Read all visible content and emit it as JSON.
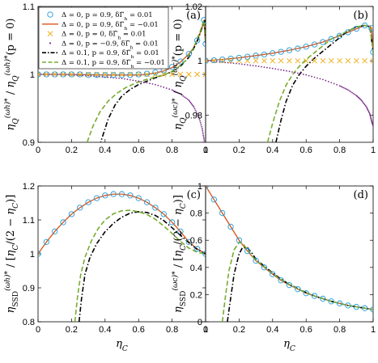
{
  "figure": {
    "legend": [
      {
        "label": "Δ = 0, p = 0.9, δΓ̃_h = 0.01",
        "marker": "circle",
        "color": "#1f9bd7"
      },
      {
        "label": "Δ = 0, p = 0.9, δΓ̃_h = −0.01",
        "marker": "solid",
        "color": "#d95319"
      },
      {
        "label": "Δ = 0, p = 0, δΓ̃_h = 0.01",
        "marker": "x",
        "color": "#edb120"
      },
      {
        "label": "Δ = 0, p = −0.9, δΓ̃_h = 0.01",
        "marker": "dot",
        "color": "#7e2f8e"
      },
      {
        "label": "Δ = 0.1, p = 0.9, δΓ̃_h = 0.01",
        "marker": "dashdot",
        "color": "#000000"
      },
      {
        "label": "Δ = 0.1, p = 0.9, δΓ̃_h = −0.01",
        "marker": "dashed",
        "color": "#77ac30"
      }
    ]
  },
  "chart_data": [
    {
      "panel": "(a)",
      "type": "line",
      "xlabel": "",
      "ylabel": "η_Q^{(ω_h)*}/η_Q^{(ω_h)*}(p=0)",
      "xlim": [
        0,
        1
      ],
      "ylim": [
        0.9,
        1.1
      ],
      "xticks": [
        "0",
        "0.2",
        "0.4",
        "0.6",
        "0.8",
        "1"
      ],
      "yticks": [
        "0.9",
        "1",
        "1.1"
      ],
      "yticks_values": [
        0.9,
        1.0,
        1.1
      ],
      "series": [
        {
          "ref": 0,
          "style": "circle",
          "x": [
            0,
            0.05,
            0.1,
            0.15,
            0.2,
            0.25,
            0.3,
            0.35,
            0.4,
            0.45,
            0.5,
            0.55,
            0.6,
            0.65,
            0.7,
            0.75,
            0.8,
            0.85,
            0.9,
            0.95,
            0.99,
            1.0
          ],
          "y": [
            1.0,
            1.0,
            1.0,
            1.0,
            1.0,
            1.0,
            0.999,
            0.999,
            0.999,
            0.999,
            0.999,
            0.999,
            1.0,
            1.001,
            1.003,
            1.006,
            1.011,
            1.019,
            1.03,
            1.05,
            1.08,
            1.045
          ]
        },
        {
          "ref": 1,
          "style": "solid",
          "x": [
            0,
            0.2,
            0.4,
            0.5,
            0.6,
            0.65,
            0.7,
            0.75,
            0.8,
            0.85,
            0.9,
            0.93,
            0.96,
            0.98,
            0.99,
            1.0
          ],
          "y": [
            1.0,
            1.0,
            0.999,
            0.999,
            0.999,
            1.0,
            1.002,
            1.005,
            1.01,
            1.018,
            1.03,
            1.04,
            1.056,
            1.07,
            1.08,
            1.045
          ]
        },
        {
          "ref": 2,
          "style": "x",
          "x": [
            0,
            0.05,
            0.1,
            0.15,
            0.2,
            0.25,
            0.3,
            0.35,
            0.4,
            0.45,
            0.5,
            0.55,
            0.6,
            0.65,
            0.7,
            0.75,
            0.8,
            0.85,
            0.9,
            0.95,
            1.0
          ],
          "y": [
            1,
            1,
            1,
            1,
            1,
            1,
            1,
            1,
            1,
            1,
            1,
            1,
            1,
            1,
            1,
            1,
            1,
            1,
            1,
            1,
            1
          ]
        },
        {
          "ref": 3,
          "style": "dot",
          "x": [
            0,
            0.1,
            0.2,
            0.3,
            0.4,
            0.5,
            0.6,
            0.7,
            0.8,
            0.85,
            0.9,
            0.93,
            0.96,
            0.98,
            0.99,
            1.0
          ],
          "y": [
            1.0,
            1.0,
            0.999,
            0.998,
            0.996,
            0.994,
            0.99,
            0.985,
            0.977,
            0.971,
            0.962,
            0.952,
            0.937,
            0.92,
            0.905,
            0.89
          ]
        },
        {
          "ref": 4,
          "style": "dashdot",
          "x": [
            0.35,
            0.38,
            0.42,
            0.46,
            0.5,
            0.55,
            0.6,
            0.65,
            0.7,
            0.75,
            0.8,
            0.85,
            0.9,
            0.95,
            0.98,
            0.995,
            1.0
          ],
          "y": [
            0.88,
            0.905,
            0.935,
            0.955,
            0.968,
            0.978,
            0.985,
            0.99,
            0.995,
            0.999,
            1.004,
            1.012,
            1.025,
            1.048,
            1.07,
            1.08,
            1.045
          ]
        },
        {
          "ref": 5,
          "style": "dashed",
          "x": [
            0.28,
            0.3,
            0.33,
            0.37,
            0.42,
            0.47,
            0.52,
            0.58,
            0.64,
            0.7,
            0.76,
            0.82,
            0.88,
            0.93,
            0.97,
            0.99,
            1.0
          ],
          "y": [
            0.89,
            0.905,
            0.925,
            0.945,
            0.961,
            0.972,
            0.98,
            0.987,
            0.992,
            0.996,
            1.0,
            1.007,
            1.02,
            1.04,
            1.065,
            1.08,
            1.045
          ]
        }
      ]
    },
    {
      "panel": "(b)",
      "type": "line",
      "xlabel": "",
      "ylabel": "η_Q^{(ω_c)*}/η_Q^{(ω_c)*}(p=0)",
      "xlim": [
        0,
        1
      ],
      "ylim": [
        0.97,
        1.02
      ],
      "xticks": [
        "0",
        "0.2",
        "0.4",
        "0.6",
        "0.8",
        "1"
      ],
      "yticks": [
        "0.98",
        "1",
        "1.02"
      ],
      "yticks_values": [
        0.98,
        1.0,
        1.02
      ],
      "series": [
        {
          "ref": 0,
          "style": "circle",
          "x": [
            0,
            0.05,
            0.1,
            0.15,
            0.2,
            0.25,
            0.3,
            0.35,
            0.4,
            0.45,
            0.5,
            0.55,
            0.6,
            0.65,
            0.7,
            0.75,
            0.8,
            0.85,
            0.9,
            0.95,
            0.99,
            1.0
          ],
          "y": [
            1.0,
            1.0002,
            1.0005,
            1.0008,
            1.0011,
            1.0015,
            1.0019,
            1.0023,
            1.0028,
            1.0033,
            1.0039,
            1.0045,
            1.0052,
            1.006,
            1.0069,
            1.008,
            1.0092,
            1.0105,
            1.0118,
            1.013,
            1.012,
            1.0032
          ]
        },
        {
          "ref": 1,
          "style": "solid",
          "x": [
            0,
            0.1,
            0.2,
            0.3,
            0.4,
            0.5,
            0.6,
            0.7,
            0.8,
            0.9,
            0.95,
            0.98,
            0.99,
            1.0
          ],
          "y": [
            1.0,
            1.0005,
            1.0011,
            1.0019,
            1.0028,
            1.0039,
            1.0052,
            1.0069,
            1.0092,
            1.0118,
            1.013,
            1.0128,
            1.012,
            1.0032
          ]
        },
        {
          "ref": 2,
          "style": "x",
          "x": [
            0,
            0.05,
            0.1,
            0.15,
            0.2,
            0.25,
            0.3,
            0.35,
            0.4,
            0.45,
            0.5,
            0.55,
            0.6,
            0.65,
            0.7,
            0.75,
            0.8,
            0.85,
            0.9,
            0.95,
            1.0
          ],
          "y": [
            1,
            1,
            1,
            1,
            1,
            1,
            1,
            1,
            1,
            1,
            1,
            1,
            1,
            1,
            1,
            1,
            1,
            1,
            1,
            1,
            1
          ]
        },
        {
          "ref": 3,
          "style": "dot",
          "x": [
            0,
            0.1,
            0.2,
            0.3,
            0.4,
            0.5,
            0.6,
            0.7,
            0.8,
            0.85,
            0.9,
            0.93,
            0.96,
            0.98,
            0.99,
            1.0
          ],
          "y": [
            1.0,
            0.9995,
            0.9989,
            0.9981,
            0.9972,
            0.9961,
            0.9948,
            0.9931,
            0.9908,
            0.9893,
            0.9872,
            0.9855,
            0.983,
            0.9805,
            0.978,
            0.976
          ]
        },
        {
          "ref": 4,
          "style": "dashdot",
          "x": [
            0.42,
            0.45,
            0.48,
            0.52,
            0.56,
            0.6,
            0.65,
            0.7,
            0.75,
            0.8,
            0.85,
            0.9,
            0.95,
            0.98,
            1.0
          ],
          "y": [
            0.97,
            0.978,
            0.985,
            0.991,
            0.995,
            0.998,
            1.001,
            1.0035,
            1.006,
            1.0085,
            1.011,
            1.0125,
            1.013,
            1.0125,
            1.0032
          ]
        },
        {
          "ref": 5,
          "style": "dashed",
          "x": [
            0.37,
            0.4,
            0.44,
            0.48,
            0.52,
            0.56,
            0.6,
            0.65,
            0.7,
            0.75,
            0.8,
            0.85,
            0.9,
            0.95,
            0.98,
            1.0
          ],
          "y": [
            0.97,
            0.977,
            0.985,
            0.991,
            0.995,
            0.998,
            1.0005,
            1.003,
            1.0055,
            1.008,
            1.0095,
            1.011,
            1.0125,
            1.013,
            1.0125,
            1.0032
          ]
        }
      ]
    },
    {
      "panel": "(c)",
      "type": "line",
      "xlabel": "η_C",
      "ylabel": "η_SSD^{(ω_h)*}/[η_C/(2−η_C)]",
      "xlim": [
        0,
        1
      ],
      "ylim": [
        0.8,
        1.2
      ],
      "xticks": [
        "0",
        "0.2",
        "0.4",
        "0.6",
        "0.8",
        "1"
      ],
      "yticks": [
        "0.8",
        "0.9",
        "1",
        "1.1",
        "1.2"
      ],
      "yticks_values": [
        0.8,
        0.9,
        1.0,
        1.1,
        1.2
      ],
      "series": [
        {
          "ref": 0,
          "style": "circle",
          "x": [
            0,
            0.05,
            0.1,
            0.15,
            0.2,
            0.25,
            0.3,
            0.35,
            0.4,
            0.45,
            0.5,
            0.55,
            0.6,
            0.65,
            0.7,
            0.75,
            0.8,
            0.85,
            0.9,
            0.95,
            1.0
          ],
          "y": [
            1.0,
            1.035,
            1.066,
            1.093,
            1.117,
            1.136,
            1.152,
            1.164,
            1.172,
            1.176,
            1.176,
            1.172,
            1.164,
            1.152,
            1.136,
            1.117,
            1.093,
            1.066,
            1.035,
            1.015,
            1.0
          ]
        },
        {
          "ref": 1,
          "style": "solid",
          "x": [
            0,
            0.05,
            0.1,
            0.15,
            0.2,
            0.25,
            0.3,
            0.35,
            0.4,
            0.45,
            0.5,
            0.55,
            0.6,
            0.65,
            0.7,
            0.75,
            0.8,
            0.85,
            0.9,
            0.95,
            1.0
          ],
          "y": [
            1.0,
            1.035,
            1.066,
            1.093,
            1.117,
            1.136,
            1.152,
            1.164,
            1.172,
            1.176,
            1.176,
            1.172,
            1.164,
            1.152,
            1.136,
            1.117,
            1.093,
            1.066,
            1.035,
            1.015,
            1.0
          ]
        },
        {
          "ref": 4,
          "style": "dashdot",
          "x": [
            0.245,
            0.26,
            0.28,
            0.31,
            0.35,
            0.4,
            0.45,
            0.5,
            0.55,
            0.6,
            0.65,
            0.7,
            0.75,
            0.8,
            0.85,
            0.9,
            0.95,
            1.0
          ],
          "y": [
            0.8,
            0.87,
            0.94,
            0.99,
            1.03,
            1.065,
            1.09,
            1.108,
            1.12,
            1.124,
            1.122,
            1.113,
            1.098,
            1.077,
            1.055,
            1.033,
            1.013,
            1.0
          ]
        },
        {
          "ref": 5,
          "style": "dashed",
          "x": [
            0.22,
            0.235,
            0.255,
            0.28,
            0.32,
            0.36,
            0.4,
            0.45,
            0.5,
            0.55,
            0.6,
            0.65,
            0.7,
            0.75,
            0.8,
            0.85,
            0.9,
            0.95,
            1.0
          ],
          "y": [
            0.8,
            0.87,
            0.94,
            0.99,
            1.04,
            1.075,
            1.1,
            1.118,
            1.127,
            1.128,
            1.124,
            1.116,
            1.102,
            1.082,
            1.06,
            1.037,
            1.017,
            1.005,
            1.0
          ]
        }
      ]
    },
    {
      "panel": "(d)",
      "type": "line",
      "xlabel": "η_C",
      "ylabel": "η_SSD^{(ω_c)*}/[η_C/(2−η_C)]",
      "xlim": [
        0,
        1
      ],
      "ylim": [
        0,
        1
      ],
      "xticks": [
        "0",
        "0.2",
        "0.4",
        "0.6",
        "0.8",
        "1"
      ],
      "yticks": [
        "0",
        "0.2",
        "0.4",
        "0.6",
        "0.8",
        "1"
      ],
      "yticks_values": [
        0,
        0.2,
        0.4,
        0.6,
        0.8,
        1.0
      ],
      "series": [
        {
          "ref": 0,
          "style": "circle",
          "x": [
            0,
            0.05,
            0.1,
            0.15,
            0.2,
            0.25,
            0.3,
            0.35,
            0.4,
            0.45,
            0.5,
            0.55,
            0.6,
            0.65,
            0.7,
            0.75,
            0.8,
            0.85,
            0.9,
            0.95,
            1.0
          ],
          "y": [
            1.0,
            0.9,
            0.8,
            0.7,
            0.6,
            0.52,
            0.45,
            0.4,
            0.35,
            0.305,
            0.27,
            0.24,
            0.21,
            0.19,
            0.17,
            0.15,
            0.135,
            0.12,
            0.11,
            0.1,
            0.09
          ]
        },
        {
          "ref": 1,
          "style": "solid",
          "x": [
            0,
            0.05,
            0.1,
            0.15,
            0.2,
            0.25,
            0.3,
            0.35,
            0.4,
            0.45,
            0.5,
            0.55,
            0.6,
            0.65,
            0.7,
            0.75,
            0.8,
            0.85,
            0.9,
            0.95,
            1.0
          ],
          "y": [
            1.0,
            0.9,
            0.8,
            0.7,
            0.6,
            0.52,
            0.45,
            0.4,
            0.35,
            0.305,
            0.27,
            0.24,
            0.21,
            0.19,
            0.17,
            0.15,
            0.135,
            0.12,
            0.11,
            0.1,
            0.09
          ]
        },
        {
          "ref": 4,
          "style": "dashdot",
          "x": [
            0.13,
            0.15,
            0.17,
            0.2,
            0.22,
            0.25,
            0.28,
            0.3,
            0.35,
            0.4,
            0.45,
            0.5,
            0.55,
            0.6,
            0.65,
            0.7,
            0.75,
            0.8,
            0.85,
            0.9,
            0.95,
            1.0
          ],
          "y": [
            0.0,
            0.18,
            0.35,
            0.5,
            0.545,
            0.545,
            0.5,
            0.46,
            0.41,
            0.36,
            0.315,
            0.275,
            0.245,
            0.215,
            0.19,
            0.17,
            0.15,
            0.135,
            0.12,
            0.11,
            0.1,
            0.09
          ]
        },
        {
          "ref": 5,
          "style": "dashed",
          "x": [
            0.1,
            0.12,
            0.14,
            0.17,
            0.2,
            0.22,
            0.25,
            0.28,
            0.3,
            0.35,
            0.4,
            0.45,
            0.5,
            0.55,
            0.6,
            0.65,
            0.7,
            0.75,
            0.8,
            0.85,
            0.9,
            0.95,
            1.0
          ],
          "y": [
            0.0,
            0.2,
            0.38,
            0.53,
            0.585,
            0.58,
            0.53,
            0.48,
            0.455,
            0.405,
            0.355,
            0.31,
            0.275,
            0.24,
            0.215,
            0.19,
            0.17,
            0.15,
            0.135,
            0.12,
            0.11,
            0.1,
            0.09
          ]
        }
      ]
    }
  ]
}
